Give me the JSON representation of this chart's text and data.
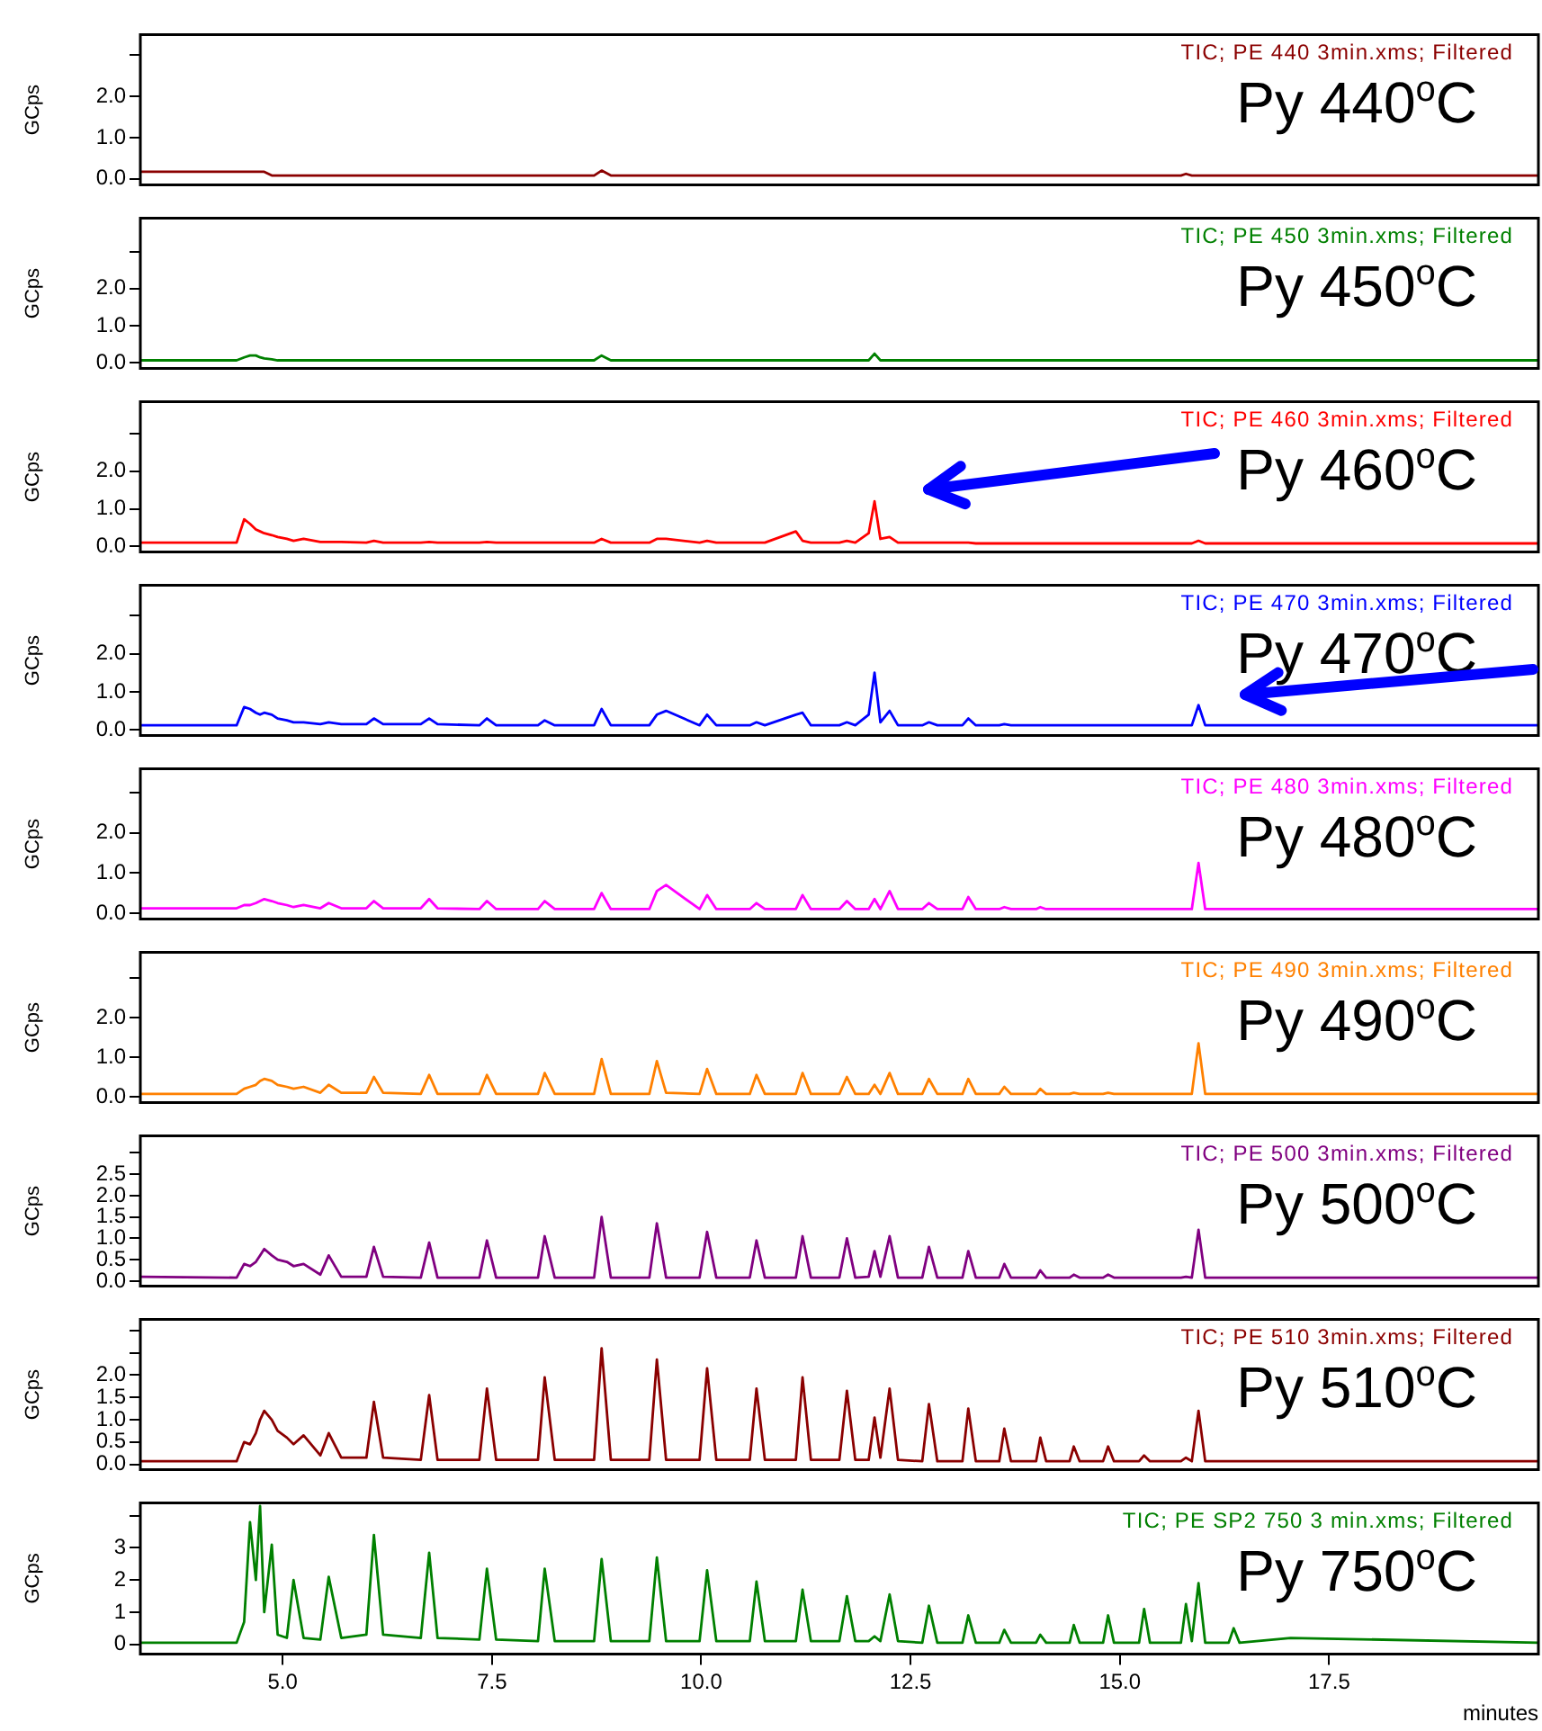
{
  "chart_data": [
    {
      "type": "line",
      "ylabel": "GCps",
      "tick_labels": "y",
      "xlim": [
        3.3,
        20
      ],
      "ylim": [
        -0.15,
        3.5
      ],
      "yticks": [
        {
          "value": 0,
          "label": "0.0"
        },
        {
          "value": 1,
          "label": "1.0"
        },
        {
          "value": 2,
          "label": "2.0"
        },
        {
          "value": 3,
          "label": null
        }
      ],
      "annotations": [
        "TIC; PE 440 3min.xms; Filtered",
        "Py 440$^{o}$C"
      ],
      "x": [
        3.3,
        4.45,
        4.54,
        4.61,
        4.68,
        4.73,
        4.78,
        4.87,
        4.94,
        5.05,
        5.13,
        5.25,
        5.45,
        5.55,
        5.7,
        6.0,
        6.09,
        6.2,
        6.65,
        6.75,
        6.85,
        7.35,
        7.44,
        7.55,
        8.05,
        8.13,
        8.25,
        8.72,
        8.81,
        8.92,
        9.38,
        9.47,
        9.58,
        9.98,
        10.07,
        10.18,
        10.58,
        10.66,
        10.76,
        11.13,
        11.21,
        11.31,
        11.65,
        11.74,
        11.84,
        12.0,
        12.07,
        12.14,
        12.25,
        12.35,
        12.64,
        12.72,
        12.82,
        13.12,
        13.19,
        13.28,
        13.56,
        13.62,
        13.7,
        14.0,
        14.05,
        14.12,
        14.4,
        14.45,
        14.52,
        14.8,
        14.86,
        14.93,
        15.23,
        15.29,
        15.36,
        15.73,
        15.79,
        15.86,
        15.94,
        16.02,
        16.3,
        16.36,
        16.43,
        17.04,
        20.0
      ],
      "series": [
        {
          "color": "#8b0000",
          "values": [
            0.17,
            0.17,
            0.17,
            0.17,
            0.17,
            0.17,
            0.17,
            0.08,
            0.08,
            0.08,
            0.08,
            0.08,
            0.08,
            0.08,
            0.08,
            0.08,
            0.08,
            0.08,
            0.08,
            0.08,
            0.08,
            0.08,
            0.08,
            0.08,
            0.08,
            0.08,
            0.08,
            0.08,
            0.2,
            0.08,
            0.08,
            0.08,
            0.08,
            0.08,
            0.08,
            0.08,
            0.08,
            0.08,
            0.08,
            0.08,
            0.08,
            0.08,
            0.08,
            0.08,
            0.08,
            0.08,
            0.08,
            0.08,
            0.08,
            0.08,
            0.08,
            0.08,
            0.08,
            0.08,
            0.08,
            0.08,
            0.08,
            0.08,
            0.08,
            0.08,
            0.08,
            0.08,
            0.08,
            0.08,
            0.08,
            0.08,
            0.08,
            0.08,
            0.08,
            0.08,
            0.08,
            0.08,
            0.12,
            0.08,
            0.08,
            0.08,
            0.08,
            0.08,
            0.08,
            0.08,
            0.08
          ]
        }
      ]
    },
    {
      "type": "line",
      "ylabel": "GCps",
      "tick_labels": "y",
      "xlim": [
        3.3,
        20
      ],
      "ylim": [
        -0.15,
        3.9
      ],
      "yticks": [
        {
          "value": 0,
          "label": "0.0"
        },
        {
          "value": 1,
          "label": "1.0"
        },
        {
          "value": 2,
          "label": "2.0"
        },
        {
          "value": 3,
          "label": null
        }
      ],
      "annotations": [
        "TIC; PE 450 3min.xms; Filtered",
        "Py 450$^{o}$C"
      ],
      "x": [
        3.3,
        4.45,
        4.54,
        4.61,
        4.68,
        4.73,
        4.78,
        4.87,
        4.94,
        5.05,
        5.13,
        5.25,
        5.45,
        5.55,
        5.7,
        6.0,
        6.09,
        6.2,
        6.65,
        6.75,
        6.85,
        7.35,
        7.44,
        7.55,
        8.05,
        8.13,
        8.25,
        8.72,
        8.81,
        8.92,
        9.38,
        9.47,
        9.58,
        9.98,
        10.07,
        10.18,
        10.58,
        10.66,
        10.76,
        11.13,
        11.21,
        11.31,
        11.65,
        11.74,
        11.84,
        12.0,
        12.07,
        12.14,
        12.25,
        12.35,
        12.64,
        12.72,
        12.82,
        13.12,
        13.19,
        13.28,
        13.56,
        13.62,
        13.7,
        14.0,
        14.05,
        14.12,
        14.4,
        14.45,
        14.52,
        14.8,
        14.86,
        14.93,
        15.23,
        15.29,
        15.36,
        15.73,
        15.79,
        15.86,
        15.94,
        16.02,
        16.3,
        16.36,
        16.43,
        17.04,
        20.0
      ],
      "series": [
        {
          "color": "#008000",
          "values": [
            0.07,
            0.07,
            0.15,
            0.2,
            0.2,
            0.15,
            0.12,
            0.1,
            0.07,
            0.07,
            0.07,
            0.07,
            0.07,
            0.07,
            0.07,
            0.07,
            0.07,
            0.07,
            0.07,
            0.07,
            0.07,
            0.07,
            0.07,
            0.07,
            0.07,
            0.07,
            0.07,
            0.07,
            0.2,
            0.07,
            0.07,
            0.07,
            0.07,
            0.07,
            0.07,
            0.07,
            0.07,
            0.07,
            0.07,
            0.07,
            0.07,
            0.07,
            0.07,
            0.07,
            0.07,
            0.07,
            0.25,
            0.07,
            0.07,
            0.07,
            0.07,
            0.07,
            0.07,
            0.07,
            0.07,
            0.07,
            0.07,
            0.07,
            0.07,
            0.07,
            0.07,
            0.07,
            0.07,
            0.07,
            0.07,
            0.07,
            0.07,
            0.07,
            0.07,
            0.07,
            0.07,
            0.07,
            0.07,
            0.07,
            0.07,
            0.07,
            0.07,
            0.07,
            0.07,
            0.07,
            0.07
          ]
        }
      ]
    },
    {
      "type": "line",
      "ylabel": "GCps",
      "tick_labels": "y",
      "xlim": [
        3.3,
        20
      ],
      "ylim": [
        -0.15,
        3.85
      ],
      "yticks": [
        {
          "value": 0,
          "label": "0.0"
        },
        {
          "value": 1,
          "label": "1.0"
        },
        {
          "value": 2,
          "label": "2.0"
        },
        {
          "value": 3,
          "label": null
        }
      ],
      "annotations": [
        "TIC; PE 460 3min.xms; Filtered",
        "Py 460$^{o}$C"
      ],
      "x": [
        3.3,
        4.45,
        4.54,
        4.61,
        4.68,
        4.73,
        4.78,
        4.87,
        4.94,
        5.05,
        5.13,
        5.25,
        5.45,
        5.55,
        5.7,
        6.0,
        6.09,
        6.2,
        6.65,
        6.75,
        6.85,
        7.35,
        7.44,
        7.55,
        8.05,
        8.13,
        8.25,
        8.72,
        8.81,
        8.92,
        9.38,
        9.47,
        9.58,
        9.98,
        10.07,
        10.18,
        10.58,
        10.66,
        10.76,
        11.13,
        11.21,
        11.31,
        11.65,
        11.74,
        11.84,
        12.0,
        12.07,
        12.14,
        12.25,
        12.35,
        12.64,
        12.72,
        12.82,
        13.12,
        13.19,
        13.28,
        13.56,
        13.62,
        13.7,
        14.0,
        14.05,
        14.12,
        14.4,
        14.45,
        14.52,
        14.8,
        14.86,
        14.93,
        15.23,
        15.29,
        15.36,
        15.73,
        15.79,
        15.86,
        15.94,
        16.02,
        16.3,
        16.36,
        16.43,
        17.04,
        20.0
      ],
      "series": [
        {
          "color": "#ff0000",
          "values": [
            0.1,
            0.1,
            0.72,
            0.6,
            0.45,
            0.4,
            0.35,
            0.3,
            0.25,
            0.2,
            0.15,
            0.2,
            0.12,
            0.12,
            0.12,
            0.1,
            0.15,
            0.1,
            0.1,
            0.12,
            0.1,
            0.1,
            0.12,
            0.1,
            0.1,
            0.1,
            0.1,
            0.1,
            0.2,
            0.1,
            0.1,
            0.2,
            0.2,
            0.1,
            0.15,
            0.1,
            0.1,
            0.1,
            0.1,
            0.4,
            0.15,
            0.1,
            0.1,
            0.15,
            0.1,
            0.35,
            1.2,
            0.2,
            0.25,
            0.1,
            0.1,
            0.1,
            0.1,
            0.1,
            0.1,
            0.08,
            0.08,
            0.08,
            0.08,
            0.08,
            0.08,
            0.08,
            0.08,
            0.08,
            0.08,
            0.08,
            0.08,
            0.08,
            0.08,
            0.08,
            0.08,
            0.08,
            0.08,
            0.08,
            0.15,
            0.08,
            0.08,
            0.08,
            0.08,
            0.08,
            0.08
          ]
        }
      ]
    },
    {
      "type": "line",
      "ylabel": "GCps",
      "tick_labels": "y",
      "xlim": [
        3.3,
        20
      ],
      "ylim": [
        -0.15,
        3.8
      ],
      "yticks": [
        {
          "value": 0,
          "label": "0.0"
        },
        {
          "value": 1,
          "label": "1.0"
        },
        {
          "value": 2,
          "label": "2.0"
        },
        {
          "value": 3,
          "label": null
        }
      ],
      "annotations": [
        "TIC; PE 470 3min.xms; Filtered",
        "Py 470$^{o}$C"
      ],
      "x": [
        3.3,
        4.45,
        4.54,
        4.61,
        4.68,
        4.73,
        4.78,
        4.87,
        4.94,
        5.05,
        5.13,
        5.25,
        5.45,
        5.55,
        5.7,
        6.0,
        6.09,
        6.2,
        6.65,
        6.75,
        6.85,
        7.35,
        7.44,
        7.55,
        8.05,
        8.13,
        8.25,
        8.72,
        8.81,
        8.92,
        9.38,
        9.47,
        9.58,
        9.98,
        10.07,
        10.18,
        10.58,
        10.66,
        10.76,
        11.13,
        11.21,
        11.31,
        11.65,
        11.74,
        11.84,
        12.0,
        12.07,
        12.14,
        12.25,
        12.35,
        12.64,
        12.72,
        12.82,
        13.12,
        13.19,
        13.28,
        13.56,
        13.62,
        13.7,
        14.0,
        14.05,
        14.12,
        14.4,
        14.45,
        14.52,
        14.8,
        14.86,
        14.93,
        15.23,
        15.29,
        15.36,
        15.73,
        15.79,
        15.86,
        15.94,
        16.02,
        16.3,
        16.36,
        16.43,
        17.04,
        20.0
      ],
      "series": [
        {
          "color": "#0000ff",
          "values": [
            0.12,
            0.12,
            0.6,
            0.55,
            0.45,
            0.4,
            0.45,
            0.4,
            0.3,
            0.25,
            0.2,
            0.2,
            0.15,
            0.2,
            0.15,
            0.15,
            0.3,
            0.15,
            0.15,
            0.3,
            0.15,
            0.12,
            0.3,
            0.12,
            0.12,
            0.25,
            0.12,
            0.12,
            0.55,
            0.12,
            0.12,
            0.4,
            0.5,
            0.12,
            0.4,
            0.12,
            0.12,
            0.2,
            0.12,
            0.4,
            0.45,
            0.12,
            0.12,
            0.2,
            0.12,
            0.4,
            1.5,
            0.2,
            0.5,
            0.12,
            0.12,
            0.2,
            0.12,
            0.12,
            0.3,
            0.12,
            0.12,
            0.15,
            0.12,
            0.12,
            0.12,
            0.12,
            0.12,
            0.12,
            0.12,
            0.12,
            0.12,
            0.12,
            0.12,
            0.12,
            0.12,
            0.12,
            0.12,
            0.12,
            0.65,
            0.12,
            0.12,
            0.12,
            0.12,
            0.12,
            0.12
          ]
        }
      ]
    },
    {
      "type": "line",
      "ylabel": "GCps",
      "tick_labels": "y",
      "xlim": [
        3.3,
        20
      ],
      "ylim": [
        -0.15,
        3.6
      ],
      "yticks": [
        {
          "value": 0,
          "label": "0.0"
        },
        {
          "value": 1,
          "label": "1.0"
        },
        {
          "value": 2,
          "label": "2.0"
        },
        {
          "value": 3,
          "label": null
        }
      ],
      "annotations": [
        "TIC; PE 480 3min.xms; Filtered",
        "Py 480$^{o}$C"
      ],
      "x": [
        3.3,
        4.45,
        4.54,
        4.61,
        4.68,
        4.73,
        4.78,
        4.87,
        4.94,
        5.05,
        5.13,
        5.25,
        5.45,
        5.55,
        5.7,
        6.0,
        6.09,
        6.2,
        6.65,
        6.75,
        6.85,
        7.35,
        7.44,
        7.55,
        8.05,
        8.13,
        8.25,
        8.72,
        8.81,
        8.92,
        9.38,
        9.47,
        9.58,
        9.98,
        10.07,
        10.18,
        10.58,
        10.66,
        10.76,
        11.13,
        11.21,
        11.31,
        11.65,
        11.74,
        11.84,
        12.0,
        12.07,
        12.14,
        12.25,
        12.35,
        12.64,
        12.72,
        12.82,
        13.12,
        13.19,
        13.28,
        13.56,
        13.62,
        13.7,
        14.0,
        14.05,
        14.12,
        14.4,
        14.45,
        14.52,
        14.8,
        14.86,
        14.93,
        15.23,
        15.29,
        15.36,
        15.73,
        15.79,
        15.86,
        15.94,
        16.02,
        16.3,
        16.36,
        16.43,
        17.04,
        20.0
      ],
      "series": [
        {
          "color": "#ff00ff",
          "values": [
            0.12,
            0.12,
            0.2,
            0.2,
            0.25,
            0.3,
            0.35,
            0.3,
            0.25,
            0.2,
            0.15,
            0.2,
            0.12,
            0.25,
            0.12,
            0.12,
            0.3,
            0.12,
            0.12,
            0.35,
            0.12,
            0.1,
            0.3,
            0.1,
            0.1,
            0.3,
            0.1,
            0.1,
            0.5,
            0.1,
            0.1,
            0.55,
            0.7,
            0.1,
            0.45,
            0.1,
            0.1,
            0.25,
            0.1,
            0.1,
            0.45,
            0.1,
            0.1,
            0.3,
            0.1,
            0.1,
            0.35,
            0.1,
            0.55,
            0.1,
            0.1,
            0.25,
            0.1,
            0.1,
            0.4,
            0.1,
            0.1,
            0.15,
            0.1,
            0.1,
            0.15,
            0.1,
            0.1,
            0.1,
            0.1,
            0.1,
            0.1,
            0.1,
            0.1,
            0.1,
            0.1,
            0.1,
            0.1,
            0.1,
            1.25,
            0.1,
            0.1,
            0.1,
            0.1,
            0.1,
            0.1
          ]
        }
      ]
    },
    {
      "type": "line",
      "ylabel": "GCps",
      "tick_labels": "y",
      "xlim": [
        3.3,
        20
      ],
      "ylim": [
        -0.15,
        3.65
      ],
      "yticks": [
        {
          "value": 0,
          "label": "0.0"
        },
        {
          "value": 1,
          "label": "1.0"
        },
        {
          "value": 2,
          "label": "2.0"
        },
        {
          "value": 3,
          "label": null
        }
      ],
      "annotations": [
        "TIC; PE 490 3min.xms; Filtered",
        "Py 490$^{o}$C"
      ],
      "x": [
        3.3,
        4.45,
        4.54,
        4.61,
        4.68,
        4.73,
        4.78,
        4.87,
        4.94,
        5.05,
        5.13,
        5.25,
        5.45,
        5.55,
        5.7,
        6.0,
        6.09,
        6.2,
        6.65,
        6.75,
        6.85,
        7.35,
        7.44,
        7.55,
        8.05,
        8.13,
        8.25,
        8.72,
        8.81,
        8.92,
        9.38,
        9.47,
        9.58,
        9.98,
        10.07,
        10.18,
        10.58,
        10.66,
        10.76,
        11.13,
        11.21,
        11.31,
        11.65,
        11.74,
        11.84,
        12.0,
        12.07,
        12.14,
        12.25,
        12.35,
        12.64,
        12.72,
        12.82,
        13.12,
        13.19,
        13.28,
        13.56,
        13.62,
        13.7,
        14.0,
        14.05,
        14.12,
        14.4,
        14.45,
        14.52,
        14.8,
        14.86,
        14.93,
        15.23,
        15.29,
        15.36,
        15.73,
        15.79,
        15.86,
        15.94,
        16.02,
        16.3,
        16.36,
        16.43,
        17.04,
        20.0
      ],
      "series": [
        {
          "color": "#ff8000",
          "values": [
            0.07,
            0.07,
            0.2,
            0.25,
            0.3,
            0.4,
            0.45,
            0.4,
            0.3,
            0.25,
            0.2,
            0.25,
            0.1,
            0.3,
            0.1,
            0.1,
            0.5,
            0.1,
            0.07,
            0.55,
            0.07,
            0.07,
            0.55,
            0.07,
            0.07,
            0.6,
            0.07,
            0.07,
            0.95,
            0.07,
            0.07,
            0.9,
            0.1,
            0.07,
            0.7,
            0.07,
            0.07,
            0.55,
            0.07,
            0.07,
            0.6,
            0.07,
            0.07,
            0.5,
            0.07,
            0.07,
            0.3,
            0.07,
            0.6,
            0.07,
            0.07,
            0.45,
            0.07,
            0.07,
            0.45,
            0.07,
            0.07,
            0.25,
            0.07,
            0.07,
            0.2,
            0.07,
            0.07,
            0.1,
            0.07,
            0.07,
            0.1,
            0.07,
            0.07,
            0.07,
            0.07,
            0.07,
            0.07,
            0.07,
            1.35,
            0.07,
            0.07,
            0.07,
            0.07,
            0.07,
            0.07
          ]
        }
      ]
    },
    {
      "type": "line",
      "ylabel": "GCps",
      "tick_labels": "y",
      "xlim": [
        3.3,
        20
      ],
      "ylim": [
        -0.12,
        3.4
      ],
      "yticks": [
        {
          "value": 0,
          "label": "0.0"
        },
        {
          "value": 0.5,
          "label": "0.5"
        },
        {
          "value": 1,
          "label": "1.0"
        },
        {
          "value": 1.5,
          "label": "1.5"
        },
        {
          "value": 2,
          "label": "2.0"
        },
        {
          "value": 2.5,
          "label": "2.5"
        },
        {
          "value": 3,
          "label": null
        }
      ],
      "annotations": [
        "TIC; PE 500 3min.xms; Filtered",
        "Py 500$^{o}$C"
      ],
      "x": [
        3.3,
        4.45,
        4.54,
        4.61,
        4.68,
        4.73,
        4.78,
        4.87,
        4.94,
        5.05,
        5.13,
        5.25,
        5.45,
        5.55,
        5.7,
        6.0,
        6.09,
        6.2,
        6.65,
        6.75,
        6.85,
        7.35,
        7.44,
        7.55,
        8.05,
        8.13,
        8.25,
        8.72,
        8.81,
        8.92,
        9.38,
        9.47,
        9.58,
        9.98,
        10.07,
        10.18,
        10.58,
        10.66,
        10.76,
        11.13,
        11.21,
        11.31,
        11.65,
        11.74,
        11.84,
        12.0,
        12.07,
        12.14,
        12.25,
        12.35,
        12.64,
        12.72,
        12.82,
        13.12,
        13.19,
        13.28,
        13.56,
        13.62,
        13.7,
        14.0,
        14.05,
        14.12,
        14.4,
        14.45,
        14.52,
        14.8,
        14.86,
        14.93,
        15.23,
        15.29,
        15.36,
        15.73,
        15.79,
        15.86,
        15.94,
        16.02,
        16.3,
        16.36,
        16.43,
        17.04,
        20.0
      ],
      "series": [
        {
          "color": "#800080",
          "values": [
            0.1,
            0.08,
            0.4,
            0.35,
            0.45,
            0.6,
            0.75,
            0.6,
            0.5,
            0.45,
            0.35,
            0.4,
            0.15,
            0.6,
            0.1,
            0.1,
            0.8,
            0.1,
            0.08,
            0.9,
            0.08,
            0.08,
            0.95,
            0.08,
            0.08,
            1.05,
            0.08,
            0.08,
            1.5,
            0.08,
            0.08,
            1.35,
            0.08,
            0.08,
            1.15,
            0.08,
            0.08,
            0.95,
            0.08,
            0.08,
            1.05,
            0.08,
            0.08,
            1.0,
            0.08,
            0.1,
            0.7,
            0.1,
            1.05,
            0.08,
            0.08,
            0.8,
            0.08,
            0.08,
            0.7,
            0.08,
            0.08,
            0.4,
            0.08,
            0.08,
            0.25,
            0.08,
            0.08,
            0.15,
            0.08,
            0.08,
            0.15,
            0.08,
            0.08,
            0.08,
            0.08,
            0.08,
            0.1,
            0.08,
            1.2,
            0.08,
            0.08,
            0.08,
            0.08,
            0.08,
            0.08
          ]
        }
      ]
    },
    {
      "type": "line",
      "ylabel": "GCps",
      "tick_labels": "y",
      "xlim": [
        3.3,
        20
      ],
      "ylim": [
        -0.12,
        3.25
      ],
      "yticks": [
        {
          "value": 0,
          "label": "0.0"
        },
        {
          "value": 0.5,
          "label": "0.5"
        },
        {
          "value": 1,
          "label": "1.0"
        },
        {
          "value": 1.5,
          "label": "1.5"
        },
        {
          "value": 2,
          "label": "2.0"
        },
        {
          "value": 2.5,
          "label": null
        },
        {
          "value": 3,
          "label": null
        }
      ],
      "annotations": [
        "TIC; PE 510 3min.xms; Filtered",
        "Py 510$^{o}$C"
      ],
      "x": [
        3.3,
        4.45,
        4.54,
        4.61,
        4.68,
        4.73,
        4.78,
        4.87,
        4.94,
        5.05,
        5.13,
        5.25,
        5.45,
        5.55,
        5.7,
        6.0,
        6.09,
        6.2,
        6.65,
        6.75,
        6.85,
        7.35,
        7.44,
        7.55,
        8.05,
        8.13,
        8.25,
        8.72,
        8.81,
        8.92,
        9.38,
        9.47,
        9.58,
        9.98,
        10.07,
        10.18,
        10.58,
        10.66,
        10.76,
        11.13,
        11.21,
        11.31,
        11.65,
        11.74,
        11.84,
        12.0,
        12.07,
        12.14,
        12.25,
        12.35,
        12.64,
        12.72,
        12.82,
        13.12,
        13.19,
        13.28,
        13.56,
        13.62,
        13.7,
        14.0,
        14.05,
        14.12,
        14.4,
        14.45,
        14.52,
        14.8,
        14.86,
        14.93,
        15.23,
        15.29,
        15.36,
        15.73,
        15.79,
        15.86,
        15.94,
        16.02,
        16.3,
        16.36,
        16.43,
        17.04,
        20.0
      ],
      "series": [
        {
          "color": "#8b0000",
          "values": [
            0.07,
            0.07,
            0.5,
            0.45,
            0.7,
            1.0,
            1.2,
            1.0,
            0.75,
            0.6,
            0.45,
            0.65,
            0.2,
            0.7,
            0.15,
            0.15,
            1.4,
            0.15,
            0.1,
            1.55,
            0.1,
            0.1,
            1.7,
            0.1,
            0.1,
            1.95,
            0.1,
            0.1,
            2.6,
            0.1,
            0.1,
            2.35,
            0.1,
            0.1,
            2.15,
            0.1,
            0.1,
            1.7,
            0.1,
            0.1,
            1.95,
            0.1,
            0.1,
            1.65,
            0.1,
            0.1,
            1.05,
            0.15,
            1.7,
            0.1,
            0.07,
            1.35,
            0.07,
            0.07,
            1.25,
            0.07,
            0.07,
            0.8,
            0.07,
            0.07,
            0.6,
            0.07,
            0.07,
            0.4,
            0.07,
            0.07,
            0.4,
            0.07,
            0.07,
            0.2,
            0.07,
            0.07,
            0.15,
            0.07,
            1.2,
            0.07,
            0.07,
            0.07,
            0.07,
            0.07,
            0.07
          ]
        }
      ]
    },
    {
      "type": "line",
      "ylabel": "GCps",
      "xlabel": "minutes",
      "xlim": [
        3.3,
        20
      ],
      "xticks": [
        {
          "value": 5,
          "label": "5.0"
        },
        {
          "value": 7.5,
          "label": "7.5"
        },
        {
          "value": 10,
          "label": "10.0"
        },
        {
          "value": 12.5,
          "label": "12.5"
        },
        {
          "value": 15,
          "label": "15.0"
        },
        {
          "value": 17.5,
          "label": "17.5"
        }
      ],
      "ylim": [
        -0.3,
        4.4
      ],
      "yticks": [
        0,
        1,
        2,
        3,
        {
          "value": 4,
          "label": null
        }
      ],
      "annotations": [
        "TIC; PE SP2 750 3 min.xms; Filtered",
        "Py 750$^{o}$C"
      ],
      "x": [
        3.3,
        4.45,
        4.54,
        4.61,
        4.68,
        4.73,
        4.78,
        4.87,
        4.94,
        5.05,
        5.13,
        5.25,
        5.45,
        5.55,
        5.7,
        6.0,
        6.09,
        6.2,
        6.65,
        6.75,
        6.85,
        7.35,
        7.44,
        7.55,
        8.05,
        8.13,
        8.25,
        8.72,
        8.81,
        8.92,
        9.38,
        9.47,
        9.58,
        9.98,
        10.07,
        10.18,
        10.58,
        10.66,
        10.76,
        11.13,
        11.21,
        11.31,
        11.65,
        11.74,
        11.84,
        12.0,
        12.07,
        12.14,
        12.25,
        12.35,
        12.64,
        12.72,
        12.82,
        13.12,
        13.19,
        13.28,
        13.56,
        13.62,
        13.7,
        14.0,
        14.05,
        14.12,
        14.4,
        14.45,
        14.52,
        14.8,
        14.86,
        14.93,
        15.23,
        15.29,
        15.36,
        15.73,
        15.79,
        15.86,
        15.94,
        16.02,
        16.3,
        16.36,
        16.43,
        17.04,
        20.0
      ],
      "series": [
        {
          "color": "#008000",
          "values": [
            0.05,
            0.05,
            0.7,
            3.8,
            2.0,
            4.3,
            1.0,
            3.1,
            0.3,
            0.2,
            2.0,
            0.2,
            0.15,
            2.1,
            0.2,
            0.3,
            3.4,
            0.3,
            0.2,
            2.85,
            0.2,
            0.15,
            2.35,
            0.15,
            0.1,
            2.35,
            0.1,
            0.1,
            2.65,
            0.1,
            0.1,
            2.7,
            0.1,
            0.1,
            2.3,
            0.1,
            0.1,
            1.95,
            0.1,
            0.1,
            1.7,
            0.1,
            0.1,
            1.5,
            0.1,
            0.1,
            0.25,
            0.1,
            1.55,
            0.1,
            0.05,
            1.2,
            0.05,
            0.05,
            0.9,
            0.05,
            0.05,
            0.45,
            0.05,
            0.05,
            0.3,
            0.05,
            0.05,
            0.6,
            0.05,
            0.05,
            0.9,
            0.05,
            0.05,
            1.1,
            0.05,
            0.05,
            1.25,
            0.1,
            1.9,
            0.05,
            0.05,
            0.5,
            0.05,
            0.2,
            0.05
          ]
        }
      ]
    }
  ]
}
